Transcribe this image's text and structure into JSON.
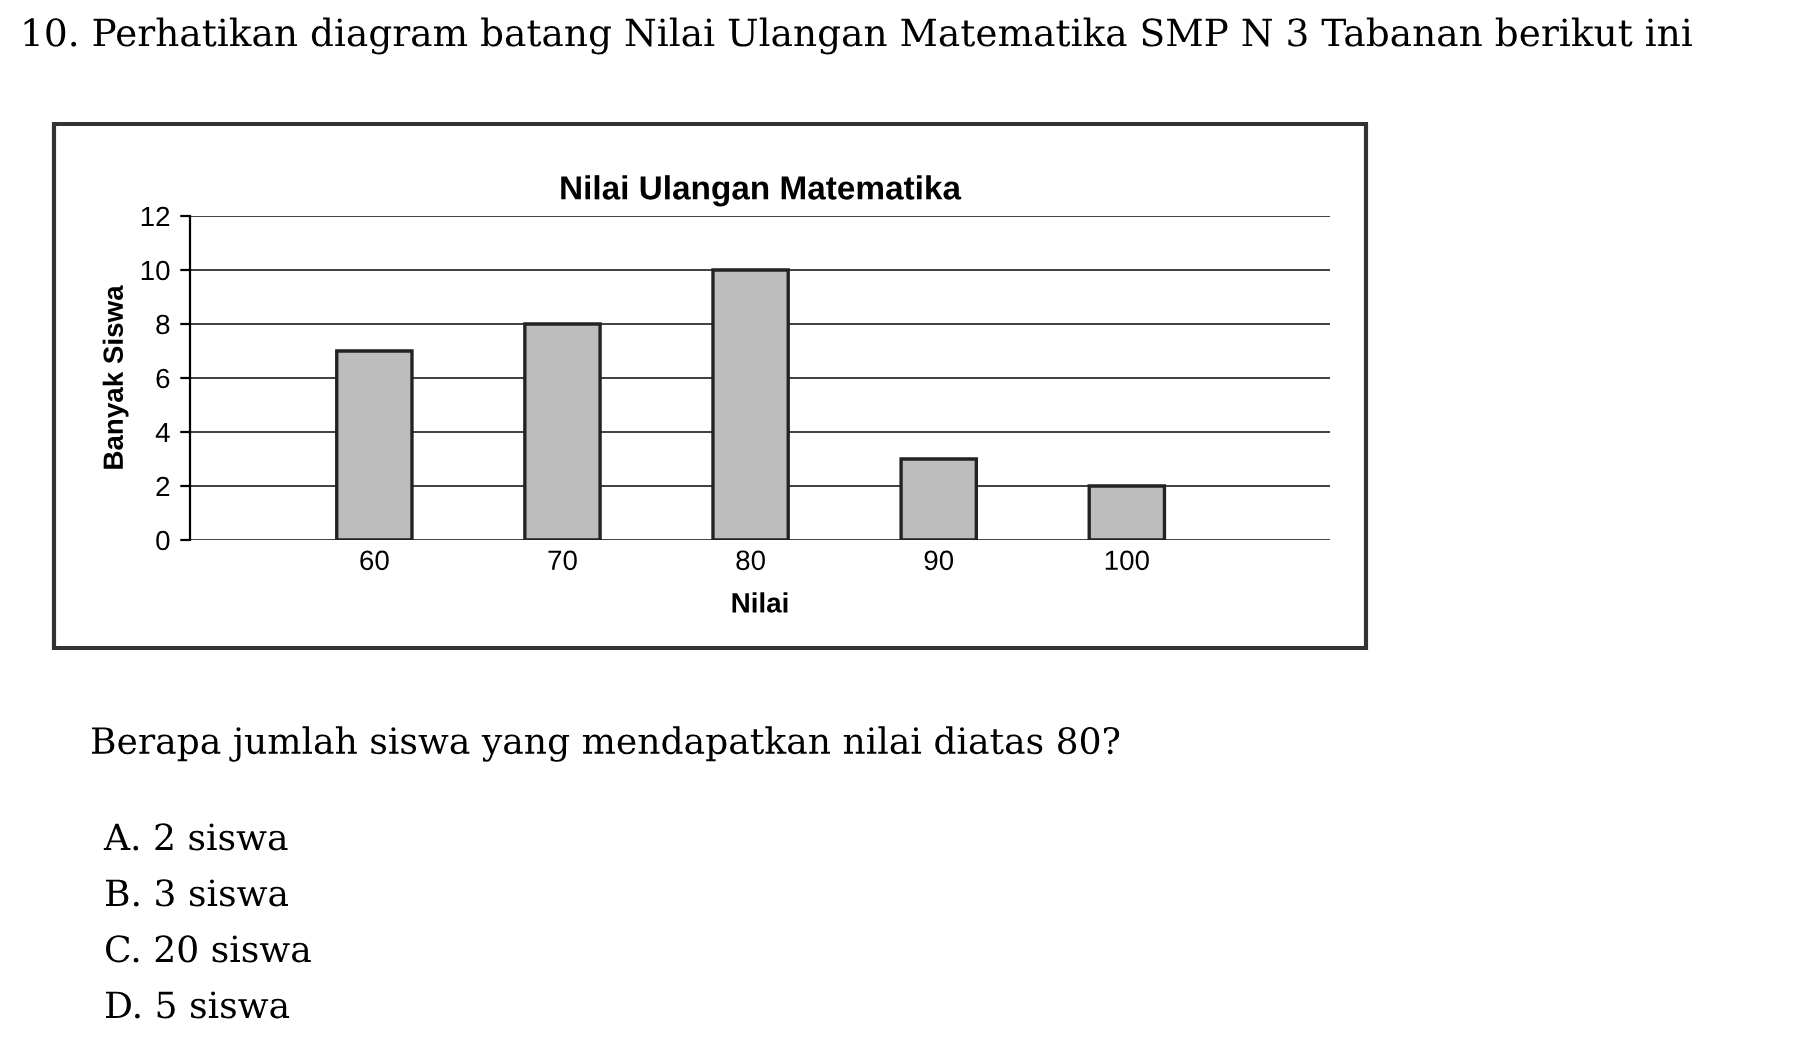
{
  "chart_data": {
    "type": "bar",
    "title": "Nilai Ulangan Matematika",
    "xlabel": "Nilai",
    "ylabel": "Banyak Siswa",
    "categories": [
      "60",
      "70",
      "80",
      "90",
      "100"
    ],
    "values": [
      7,
      8,
      10,
      3,
      2
    ],
    "color": "#bdbdbd",
    "ylim": [
      0,
      12
    ],
    "yticks": [
      0,
      2,
      4,
      6,
      8,
      10,
      12
    ],
    "grid": "y",
    "annotations": [
      "10. Perhatikan diagram batang Nilai Ulangan Matematika SMP N 3 Tabanan berikut ini",
      "Berapa jumlah siswa yang mendapatkan nilai diatas 80?",
      "A. 2 siswa",
      "B. 3 siswa",
      "C. 20 siswa",
      "D. 5 siswa"
    ]
  }
}
